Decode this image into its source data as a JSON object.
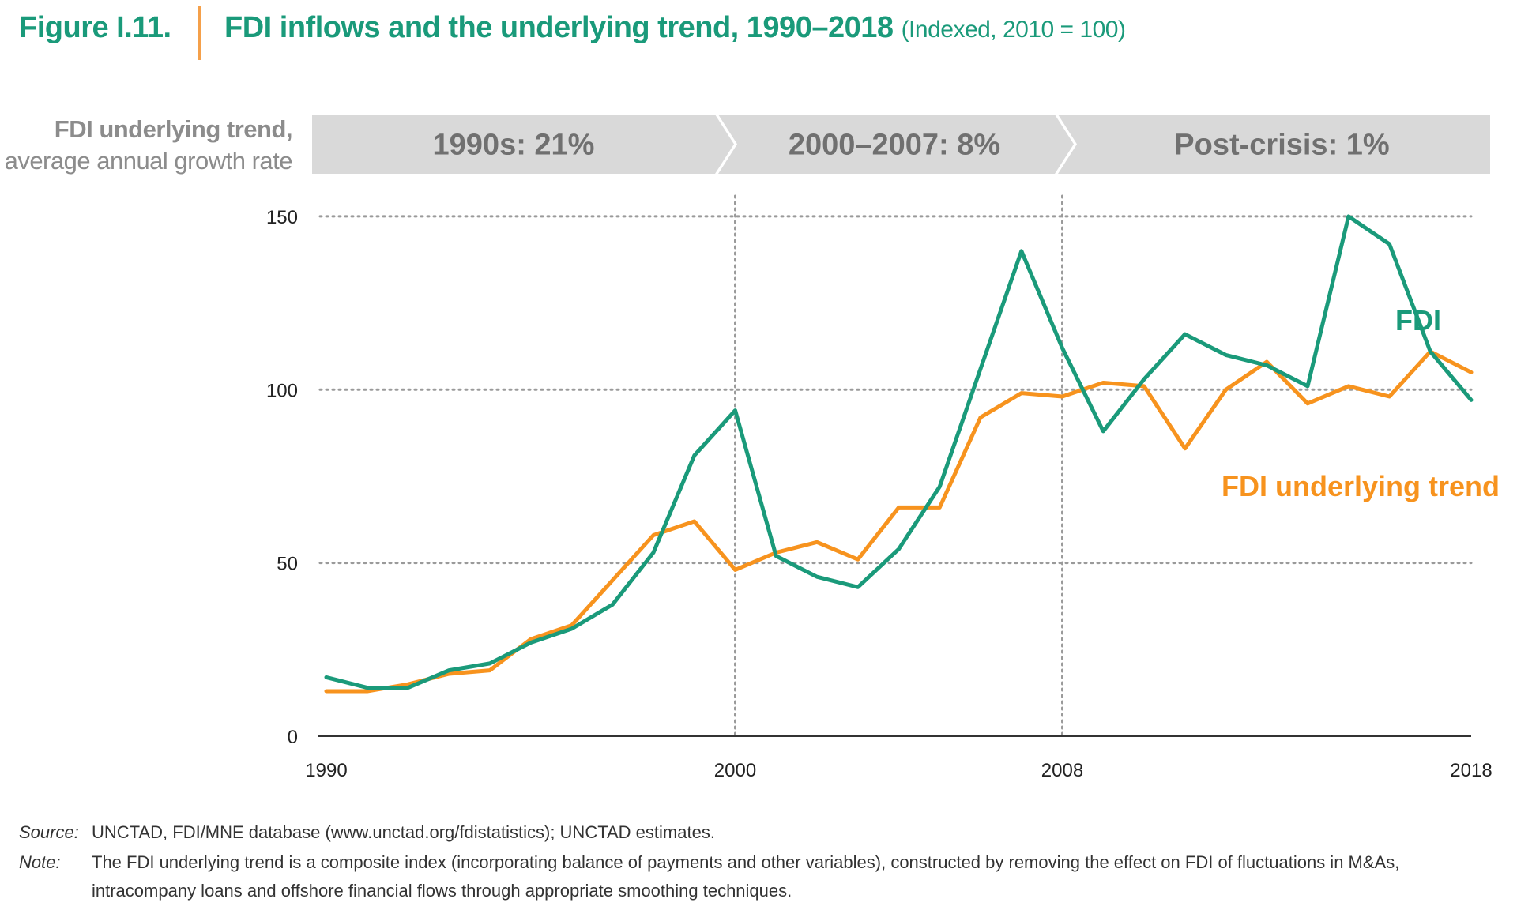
{
  "header": {
    "figure_label": "Figure I.11.",
    "title": "FDI inflows and the underlying trend, 1990–2018",
    "subtitle": "(Indexed, 2010 = 100)"
  },
  "growth_banner": {
    "label_line1": "FDI underlying trend,",
    "label_line2": "average annual growth rate",
    "periods": [
      {
        "label": "1990s: 21%"
      },
      {
        "label": "2000–2007: 8%"
      },
      {
        "label": "Post-crisis: 1%"
      }
    ],
    "color": "#d9d9d9"
  },
  "chart_data": {
    "type": "line",
    "x": [
      1990,
      1991,
      1992,
      1993,
      1994,
      1995,
      1996,
      1997,
      1998,
      1999,
      2000,
      2001,
      2002,
      2003,
      2004,
      2005,
      2006,
      2007,
      2008,
      2009,
      2010,
      2011,
      2012,
      2013,
      2014,
      2015,
      2016,
      2017,
      2018
    ],
    "series": [
      {
        "name": "FDI",
        "color": "#1a9a7a",
        "values": [
          17,
          14,
          14,
          19,
          21,
          27,
          31,
          38,
          53,
          81,
          94,
          52,
          46,
          43,
          54,
          72,
          106,
          140,
          112,
          88,
          103,
          116,
          110,
          107,
          101,
          150,
          142,
          111,
          97
        ]
      },
      {
        "name": "FDI underlying trend",
        "color": "#f7931e",
        "values": [
          13,
          13,
          15,
          18,
          19,
          28,
          32,
          45,
          58,
          62,
          48,
          53,
          56,
          51,
          66,
          66,
          92,
          99,
          98,
          102,
          101,
          83,
          100,
          108,
          96,
          101,
          98,
          111,
          105
        ]
      }
    ],
    "xticks": [
      "1990",
      "2000",
      "2008",
      "2018"
    ],
    "yticks": [
      "0",
      "50",
      "100",
      "150"
    ],
    "ylim": [
      0,
      160
    ],
    "xlim": [
      1990,
      2018
    ],
    "grid": "dotted horizontal at 50, 100, 150; dotted vertical at 2000 and 2008",
    "legend": "inline labels at right",
    "xlabel": "",
    "ylabel": ""
  },
  "footer": {
    "source_key": "Source:",
    "source_text": "UNCTAD, FDI/MNE database (www.unctad.org/fdistatistics); UNCTAD estimates.",
    "note_key": "Note:",
    "note_text": "The FDI underlying trend is a composite index (incorporating balance of payments and other variables), constructed by removing the effect on FDI of fluctuations in M&As, intracompany loans and offshore financial flows through appropriate smoothing techniques."
  }
}
